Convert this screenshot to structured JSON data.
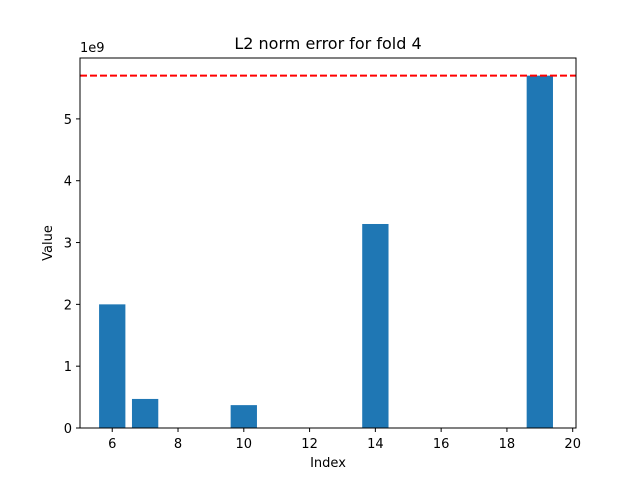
{
  "chart_data": {
    "type": "bar",
    "title": "L2 norm error for fold 4",
    "xlabel": "Index",
    "ylabel": "Value",
    "y_scale_label": "1e9",
    "x": [
      6,
      7,
      10,
      14,
      19
    ],
    "values": [
      2.0,
      0.47,
      0.37,
      3.3,
      5.7
    ],
    "xlim": [
      5.02,
      20.1
    ],
    "ylim": [
      0,
      5.985
    ],
    "xticks": [
      6,
      8,
      10,
      12,
      14,
      16,
      18,
      20
    ],
    "yticks": [
      0,
      1,
      2,
      3,
      4,
      5
    ],
    "reference_line": {
      "value": 5.7,
      "style": "dashed",
      "color": "#ff0000"
    },
    "bar_color": "#1f77b4",
    "grid": false,
    "legend": "none"
  }
}
